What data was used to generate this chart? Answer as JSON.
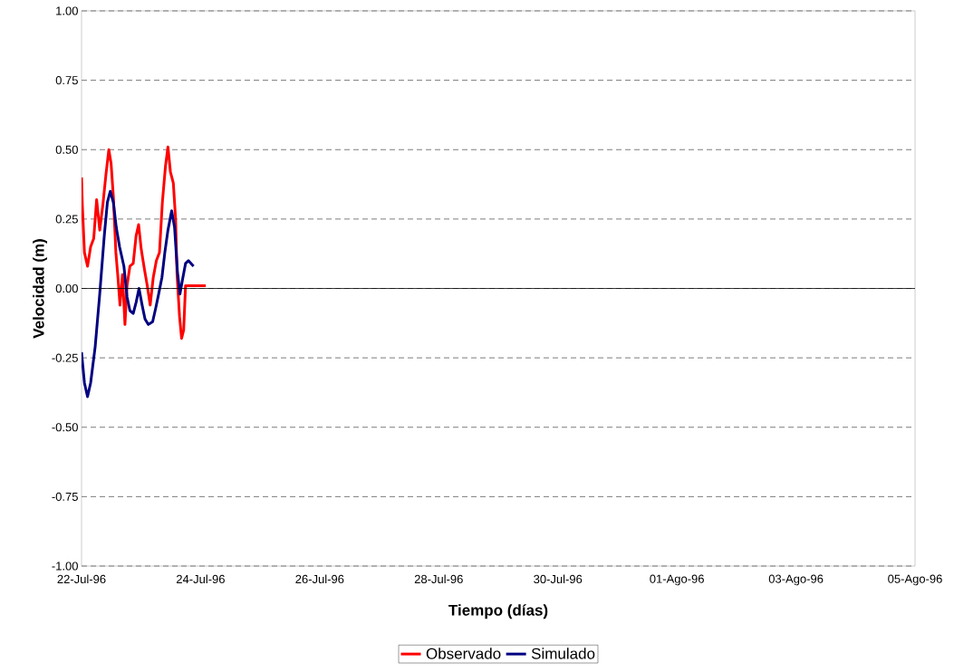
{
  "chart_data": {
    "type": "line",
    "xlabel": "Tiempo (días)",
    "ylabel": "Velocidad (m)",
    "xlim": [
      "1996-07-22",
      "1996-08-05"
    ],
    "xticks": [
      {
        "value": "1996-07-22",
        "label": "22-Jul-96"
      },
      {
        "value": "1996-07-24",
        "label": "24-Jul-96"
      },
      {
        "value": "1996-07-26",
        "label": "26-Jul-96"
      },
      {
        "value": "1996-07-28",
        "label": "28-Jul-96"
      },
      {
        "value": "1996-07-30",
        "label": "30-Jul-96"
      },
      {
        "value": "1996-08-01",
        "label": "01-Ago-96"
      },
      {
        "value": "1996-08-03",
        "label": "03-Ago-96"
      },
      {
        "value": "1996-08-05",
        "label": "05-Ago-96"
      }
    ],
    "ylim": [
      -1,
      1
    ],
    "yticks": [
      {
        "value": -1,
        "label": "-1.00"
      },
      {
        "value": -0.75,
        "label": "-0.75"
      },
      {
        "value": -0.5,
        "label": "-0.50"
      },
      {
        "value": -0.25,
        "label": "-0.25"
      },
      {
        "value": 0,
        "label": "0.00"
      },
      {
        "value": 0.25,
        "label": "0.25"
      },
      {
        "value": 0.5,
        "label": "0.50"
      },
      {
        "value": 0.75,
        "label": "0.75"
      },
      {
        "value": 1,
        "label": "1.00"
      }
    ],
    "grid": "y",
    "legend": "bottom",
    "marker": "none",
    "line_style": "solid",
    "series": [
      {
        "name": "Observado",
        "color": "#ff0000",
        "x": [
          "1996-07-22T00:00",
          "1996-07-22T00:20",
          "1996-07-22T01:10",
          "1996-07-22T02:25",
          "1996-07-22T03:40",
          "1996-07-22T04:55",
          "1996-07-22T06:05",
          "1996-07-22T07:20",
          "1996-07-22T08:35",
          "1996-07-22T09:50",
          "1996-07-22T11:00",
          "1996-07-22T11:55",
          "1996-07-22T12:50",
          "1996-07-22T13:50",
          "1996-07-22T14:40",
          "1996-07-22T15:30",
          "1996-07-22T16:30",
          "1996-07-22T17:30",
          "1996-07-22T18:20",
          "1996-07-22T19:30",
          "1996-07-22T20:50",
          "1996-07-22T22:00",
          "1996-07-22T23:00",
          "1996-07-23T00:05",
          "1996-07-23T01:20",
          "1996-07-23T02:30",
          "1996-07-23T03:40",
          "1996-07-23T04:55",
          "1996-07-23T06:10",
          "1996-07-23T07:25",
          "1996-07-23T08:35",
          "1996-07-23T09:50",
          "1996-07-23T10:50",
          "1996-07-23T11:50",
          "1996-07-23T13:00",
          "1996-07-23T13:55",
          "1996-07-23T14:30",
          "1996-07-23T15:30",
          "1996-07-23T16:20",
          "1996-07-23T17:10",
          "1996-07-23T17:55",
          "1996-07-23T18:50",
          "1996-07-23T22:25",
          "1996-07-24T02:05"
        ],
        "values": [
          0.4,
          0.3,
          0.13,
          0.08,
          0.15,
          0.18,
          0.32,
          0.21,
          0.3,
          0.41,
          0.5,
          0.45,
          0.33,
          0.13,
          0.04,
          -0.06,
          0.05,
          -0.13,
          0.01,
          0.08,
          0.09,
          0.19,
          0.23,
          0.14,
          0.07,
          0.01,
          -0.06,
          0.04,
          0.1,
          0.13,
          0.31,
          0.44,
          0.51,
          0.42,
          0.38,
          0.25,
          0.05,
          -0.1,
          -0.18,
          -0.15,
          0.01,
          0.01,
          0.01,
          0.01
        ]
      },
      {
        "name": "Simulado",
        "color": "#000080",
        "x": [
          "1996-07-22T00:00",
          "1996-07-22T01:10",
          "1996-07-22T02:25",
          "1996-07-22T03:40",
          "1996-07-22T05:30",
          "1996-07-22T07:20",
          "1996-07-22T09:10",
          "1996-07-22T10:25",
          "1996-07-22T11:35",
          "1996-07-22T12:50",
          "1996-07-22T14:00",
          "1996-07-22T15:20",
          "1996-07-22T17:05",
          "1996-07-22T18:20",
          "1996-07-22T19:30",
          "1996-07-22T20:50",
          "1996-07-22T22:00",
          "1996-07-22T23:10",
          "1996-07-23T00:25",
          "1996-07-23T01:35",
          "1996-07-23T02:55",
          "1996-07-23T04:40",
          "1996-07-23T05:55",
          "1996-07-23T07:05",
          "1996-07-23T08:25",
          "1996-07-23T09:35",
          "1996-07-23T10:50",
          "1996-07-23T12:20",
          "1996-07-23T13:30",
          "1996-07-23T14:40",
          "1996-07-23T15:40",
          "1996-07-23T16:40",
          "1996-07-23T17:55",
          "1996-07-23T19:05",
          "1996-07-23T21:10"
        ],
        "values": [
          -0.23,
          -0.34,
          -0.39,
          -0.34,
          -0.21,
          -0.02,
          0.19,
          0.31,
          0.35,
          0.31,
          0.22,
          0.15,
          0.08,
          -0.03,
          -0.08,
          -0.09,
          -0.05,
          0.0,
          -0.06,
          -0.11,
          -0.13,
          -0.12,
          -0.07,
          -0.02,
          0.04,
          0.13,
          0.21,
          0.28,
          0.22,
          0.06,
          -0.02,
          0.03,
          0.09,
          0.1,
          0.08
        ]
      }
    ]
  }
}
